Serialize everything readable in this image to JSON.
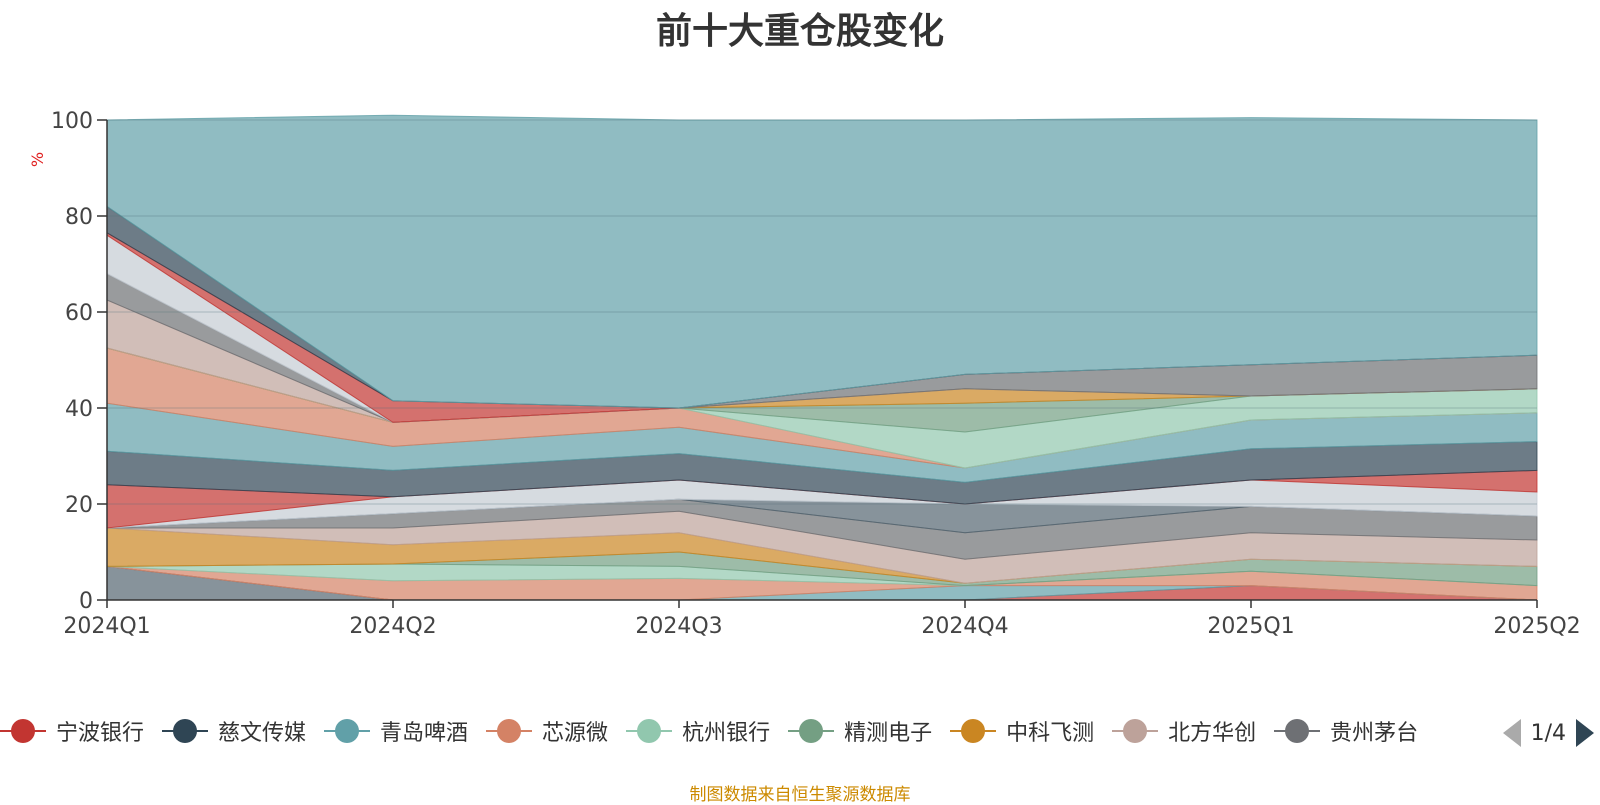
{
  "title": "前十大重仓股变化",
  "unit_label": "%",
  "source_note": "制图数据来自恒生聚源数据库",
  "legend": {
    "pager_text": "1/4",
    "items": [
      {
        "name": "宁波银行",
        "color": "#c23531"
      },
      {
        "name": "慈文传媒",
        "color": "#2f4554"
      },
      {
        "name": "青岛啤酒",
        "color": "#61a0a8"
      },
      {
        "name": "芯源微",
        "color": "#d48265"
      },
      {
        "name": "杭州银行",
        "color": "#91c7ae"
      },
      {
        "name": "精测电子",
        "color": "#749f83"
      },
      {
        "name": "中科飞测",
        "color": "#ca8622"
      },
      {
        "name": "北方华创",
        "color": "#bda29a"
      },
      {
        "name": "贵州茅台",
        "color": "#6e7074"
      }
    ]
  },
  "chart_data": {
    "type": "area",
    "title": "前十大重仓股变化",
    "ylabel": "%",
    "ylim": [
      0,
      100
    ],
    "yticks": [
      0,
      20,
      40,
      60,
      80,
      100
    ],
    "categories": [
      "2024Q1",
      "2024Q2",
      "2024Q3",
      "2024Q4",
      "2025Q1",
      "2025Q2"
    ],
    "grid": true,
    "series": [
      {
        "color": "#546570",
        "values": [
          7.0,
          0.0,
          0.0,
          0.0,
          0.0,
          0.0
        ]
      },
      {
        "color": "#c23531",
        "values": [
          0.0,
          0.0,
          0.0,
          0.0,
          3.0,
          0.0
        ]
      },
      {
        "color": "#61a0a8",
        "values": [
          0.0,
          0.0,
          0.0,
          3.0,
          0.0,
          0.0
        ]
      },
      {
        "color": "#d48265",
        "values": [
          0.0,
          4.0,
          4.5,
          0.0,
          3.0,
          3.0
        ]
      },
      {
        "color": "#91c7ae",
        "values": [
          0.0,
          3.5,
          2.5,
          0.0,
          0.0,
          0.0
        ]
      },
      {
        "color": "#749f83",
        "values": [
          0.0,
          0.0,
          3.0,
          0.5,
          2.5,
          4.0
        ]
      },
      {
        "color": "#ca8622",
        "values": [
          8.0,
          4.0,
          4.0,
          0.0,
          0.0,
          0.0
        ]
      },
      {
        "color": "#bda29a",
        "values": [
          0.0,
          3.5,
          4.5,
          5.0,
          5.5,
          5.5
        ]
      },
      {
        "color": "#6e7074",
        "values": [
          0.0,
          3.0,
          2.5,
          5.5,
          5.5,
          5.0
        ]
      },
      {
        "color": "#546570",
        "values": [
          0.0,
          0.0,
          0.0,
          6.0,
          0.0,
          0.0
        ]
      },
      {
        "color": "#c4ccd3",
        "values": [
          0.0,
          3.5,
          4.0,
          0.0,
          5.5,
          5.0
        ]
      },
      {
        "color": "#c23531",
        "values": [
          9.0,
          0.0,
          0.0,
          0.0,
          0.0,
          4.5
        ]
      },
      {
        "color": "#2f4554",
        "values": [
          7.0,
          5.5,
          5.5,
          4.5,
          6.5,
          6.0
        ]
      },
      {
        "color": "#61a0a8",
        "values": [
          10.0,
          5.0,
          5.5,
          3.0,
          6.0,
          6.0
        ]
      },
      {
        "color": "#d48265",
        "values": [
          11.5,
          5.0,
          4.0,
          0.0,
          0.0,
          0.0
        ]
      },
      {
        "color": "#91c7ae",
        "values": [
          0.0,
          0.0,
          0.0,
          7.5,
          5.0,
          5.0
        ]
      },
      {
        "color": "#749f83",
        "values": [
          0.0,
          0.0,
          0.0,
          6.0,
          0.0,
          0.0
        ]
      },
      {
        "color": "#ca8622",
        "values": [
          0.0,
          0.0,
          0.0,
          3.0,
          0.0,
          0.0
        ]
      },
      {
        "color": "#bda29a",
        "values": [
          10.0,
          0.0,
          0.0,
          0.0,
          0.0,
          0.0
        ]
      },
      {
        "color": "#6e7074",
        "values": [
          5.5,
          0.0,
          0.0,
          3.0,
          6.5,
          7.0
        ]
      },
      {
        "color": "#c4ccd3",
        "values": [
          8.0,
          0.0,
          0.0,
          0.0,
          0.0,
          0.0
        ]
      },
      {
        "color": "#c23531",
        "values": [
          0.5,
          4.5,
          0.0,
          0.0,
          0.0,
          0.0
        ]
      },
      {
        "color": "#2f4554",
        "values": [
          5.5,
          0.0,
          0.0,
          0.0,
          0.0,
          0.0
        ]
      },
      {
        "color": "#61a0a8",
        "values": [
          18.0,
          59.5,
          60.0,
          53.0,
          51.5,
          49.0
        ]
      }
    ]
  }
}
